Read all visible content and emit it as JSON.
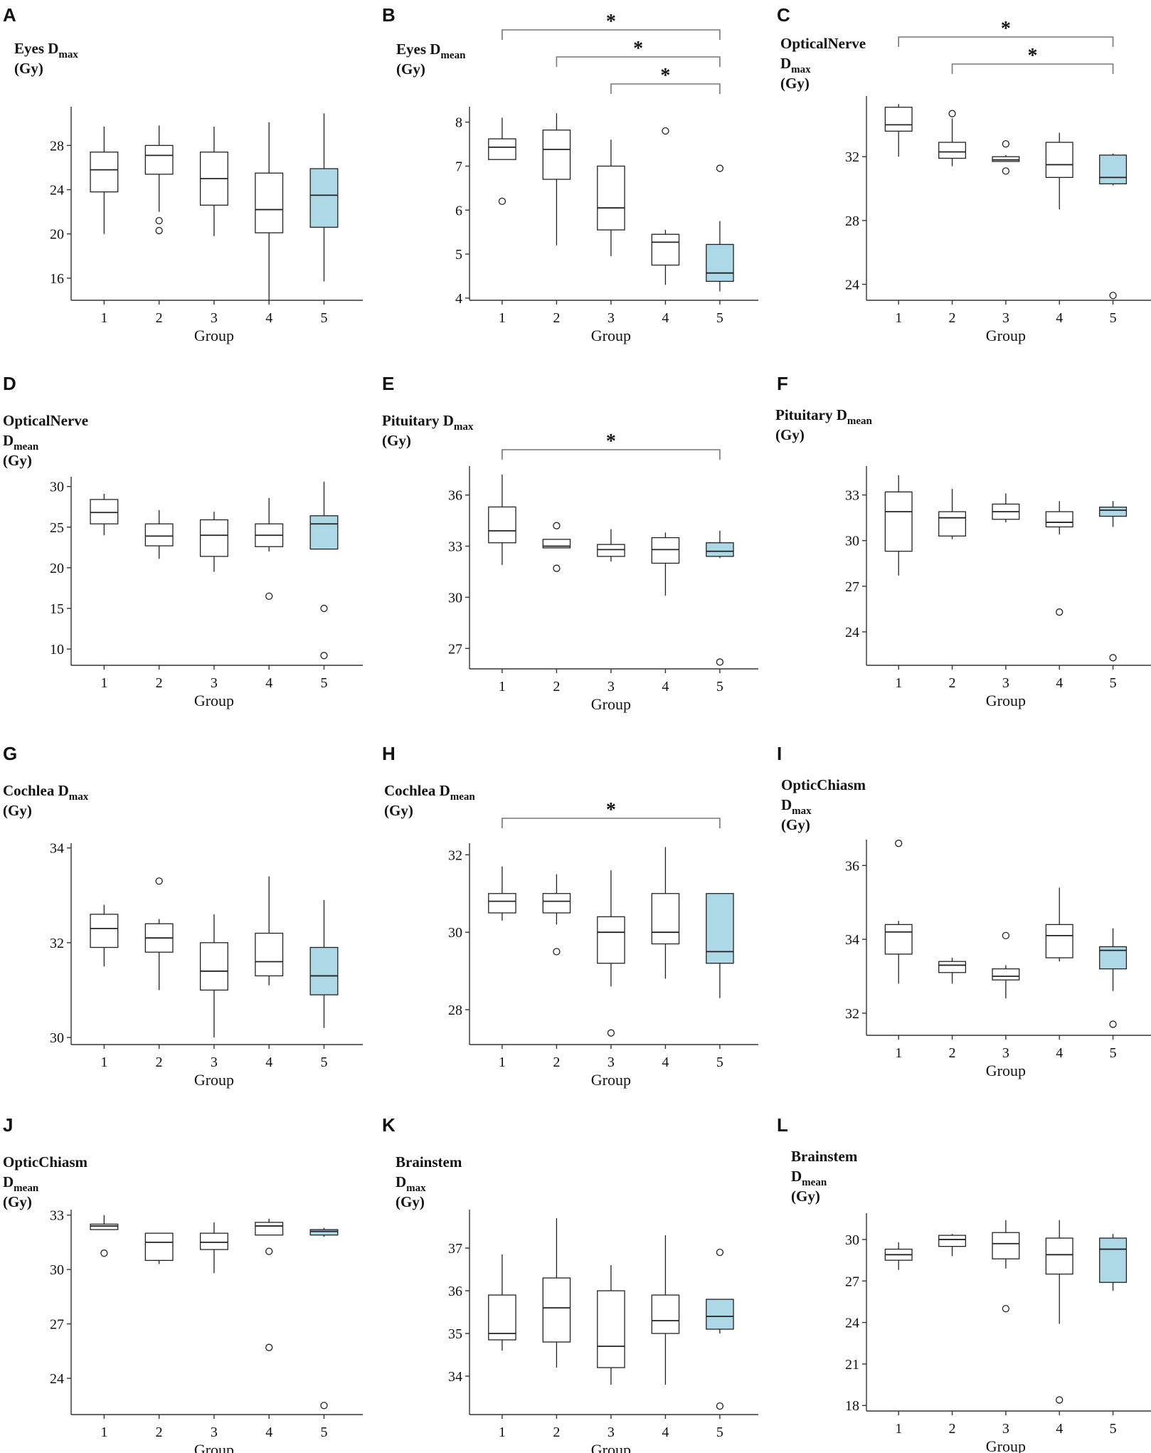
{
  "colors": {
    "highlight": "#add8e6",
    "plain": "#ffffff",
    "line": "#222222"
  },
  "chart_data": [
    {
      "panel": "A",
      "type": "box",
      "title_lines": [
        [
          "Eyes D",
          "max"
        ],
        [
          "(Gy)",
          ""
        ]
      ],
      "xlabel": "Group",
      "categories": [
        "1",
        "2",
        "3",
        "4",
        "5"
      ],
      "ylim": [
        14,
        31.5
      ],
      "yticks": [
        16,
        20,
        24,
        28
      ],
      "highlight_group": 5,
      "boxes": [
        {
          "group": "1",
          "min": 20,
          "q1": 23.8,
          "median": 25.8,
          "q3": 27.4,
          "max": 29.7,
          "outliers": []
        },
        {
          "group": "2",
          "min": 22,
          "q1": 25.4,
          "median": 27.1,
          "q3": 28,
          "max": 29.8,
          "outliers": [
            21.2,
            20.3
          ]
        },
        {
          "group": "3",
          "min": 19.8,
          "q1": 22.6,
          "median": 25,
          "q3": 27.4,
          "max": 29.7,
          "outliers": []
        },
        {
          "group": "4",
          "min": 14,
          "q1": 20.1,
          "median": 22.2,
          "q3": 25.5,
          "max": 30.1,
          "outliers": []
        },
        {
          "group": "5",
          "min": 15.7,
          "q1": 20.6,
          "median": 23.5,
          "q3": 25.9,
          "max": 30.9,
          "outliers": []
        }
      ],
      "significance": []
    },
    {
      "panel": "B",
      "type": "box",
      "title_lines": [
        [
          "Eyes D",
          "mean"
        ],
        [
          "(Gy)",
          ""
        ]
      ],
      "xlabel": "Group",
      "categories": [
        "1",
        "2",
        "3",
        "4",
        "5"
      ],
      "ylim": [
        3.95,
        8.35
      ],
      "yticks": [
        4,
        5,
        6,
        7,
        8
      ],
      "highlight_group": 5,
      "boxes": [
        {
          "group": "1",
          "min": 7.15,
          "q1": 7.15,
          "median": 7.43,
          "q3": 7.62,
          "max": 8.1,
          "outliers": [
            6.2
          ]
        },
        {
          "group": "2",
          "min": 5.2,
          "q1": 6.7,
          "median": 7.38,
          "q3": 7.82,
          "max": 8.2,
          "outliers": []
        },
        {
          "group": "3",
          "min": 4.95,
          "q1": 5.55,
          "median": 6.05,
          "q3": 7,
          "max": 7.6,
          "outliers": []
        },
        {
          "group": "4",
          "min": 4.3,
          "q1": 4.75,
          "median": 5.27,
          "q3": 5.45,
          "max": 5.55,
          "outliers": [
            7.8
          ]
        },
        {
          "group": "5",
          "min": 4.15,
          "q1": 4.38,
          "median": 4.57,
          "q3": 5.22,
          "max": 5.75,
          "outliers": [
            6.95
          ]
        }
      ],
      "significance": [
        {
          "from": "1",
          "to": "5",
          "label": "*"
        },
        {
          "from": "2",
          "to": "5",
          "label": "*"
        },
        {
          "from": "3",
          "to": "5",
          "label": "*"
        }
      ]
    },
    {
      "panel": "C",
      "type": "box",
      "title_lines": [
        [
          "OpticalNerve",
          ""
        ],
        [
          "D",
          "max"
        ],
        [
          "(Gy)",
          ""
        ]
      ],
      "xlabel": "Group",
      "categories": [
        "1",
        "2",
        "3",
        "4",
        "5"
      ],
      "ylim": [
        23,
        35.8
      ],
      "yticks": [
        24,
        28,
        32
      ],
      "highlight_group": 5,
      "boxes": [
        {
          "group": "1",
          "min": 32,
          "q1": 33.6,
          "median": 34,
          "q3": 35.1,
          "max": 35.3,
          "outliers": []
        },
        {
          "group": "2",
          "min": 31.4,
          "q1": 31.9,
          "median": 32.3,
          "q3": 32.9,
          "max": 34.4,
          "outliers": [
            34.7
          ]
        },
        {
          "group": "3",
          "min": 31.7,
          "q1": 31.7,
          "median": 31.8,
          "q3": 32,
          "max": 32.1,
          "outliers": [
            32.8,
            31.1
          ]
        },
        {
          "group": "4",
          "min": 28.7,
          "q1": 30.7,
          "median": 31.5,
          "q3": 32.9,
          "max": 33.5,
          "outliers": []
        },
        {
          "group": "5",
          "min": 30.2,
          "q1": 30.3,
          "median": 30.7,
          "q3": 32.1,
          "max": 32.2,
          "outliers": [
            23.3
          ]
        }
      ],
      "significance": [
        {
          "from": "1",
          "to": "5",
          "label": "*"
        },
        {
          "from": "2",
          "to": "5",
          "label": "*"
        }
      ]
    },
    {
      "panel": "D",
      "type": "box",
      "title_lines": [
        [
          "OpticalNerve",
          ""
        ],
        [
          "D",
          "mean"
        ],
        [
          "(Gy)",
          ""
        ]
      ],
      "xlabel": "Group",
      "categories": [
        "1",
        "2",
        "3",
        "4",
        "5"
      ],
      "ylim": [
        8,
        31.2
      ],
      "yticks": [
        10,
        15,
        20,
        25,
        30
      ],
      "highlight_group": 5,
      "boxes": [
        {
          "group": "1",
          "min": 24,
          "q1": 25.4,
          "median": 26.8,
          "q3": 28.4,
          "max": 29.1,
          "outliers": []
        },
        {
          "group": "2",
          "min": 21.1,
          "q1": 22.7,
          "median": 23.9,
          "q3": 25.4,
          "max": 27.1,
          "outliers": []
        },
        {
          "group": "3",
          "min": 19.5,
          "q1": 21.4,
          "median": 24,
          "q3": 25.9,
          "max": 26.9,
          "outliers": []
        },
        {
          "group": "4",
          "min": 22,
          "q1": 22.6,
          "median": 24,
          "q3": 25.4,
          "max": 28.6,
          "outliers": [
            16.5
          ]
        },
        {
          "group": "5",
          "min": 22.3,
          "q1": 22.3,
          "median": 25.4,
          "q3": 26.4,
          "max": 30.6,
          "outliers": [
            15,
            9.2
          ]
        }
      ],
      "significance": []
    },
    {
      "panel": "E",
      "type": "box",
      "title_lines": [
        [
          "Pituitary D",
          "max"
        ],
        [
          "(Gy)",
          ""
        ]
      ],
      "xlabel": "Group",
      "categories": [
        "1",
        "2",
        "3",
        "4",
        "5"
      ],
      "ylim": [
        25.8,
        37.7
      ],
      "yticks": [
        27,
        30,
        33,
        36
      ],
      "highlight_group": 5,
      "boxes": [
        {
          "group": "1",
          "min": 31.9,
          "q1": 33.2,
          "median": 33.9,
          "q3": 35.3,
          "max": 37.2,
          "outliers": []
        },
        {
          "group": "2",
          "min": 32.9,
          "q1": 32.9,
          "median": 33,
          "q3": 33.4,
          "max": 33.4,
          "outliers": [
            34.2,
            31.7
          ]
        },
        {
          "group": "3",
          "min": 32.1,
          "q1": 32.4,
          "median": 32.8,
          "q3": 33.1,
          "max": 34,
          "outliers": []
        },
        {
          "group": "4",
          "min": 30.1,
          "q1": 32,
          "median": 32.8,
          "q3": 33.5,
          "max": 33.8,
          "outliers": []
        },
        {
          "group": "5",
          "min": 32.3,
          "q1": 32.4,
          "median": 32.7,
          "q3": 33.2,
          "max": 33.9,
          "outliers": [
            26.2
          ]
        }
      ],
      "significance": [
        {
          "from": "1",
          "to": "5",
          "label": "*"
        }
      ]
    },
    {
      "panel": "F",
      "type": "box",
      "title_lines": [
        [
          "Pituitary D",
          "mean"
        ],
        [
          "(Gy)",
          ""
        ]
      ],
      "xlabel": "Group",
      "categories": [
        "1",
        "2",
        "3",
        "4",
        "5"
      ],
      "ylim": [
        21.8,
        34.9
      ],
      "yticks": [
        24,
        27,
        30,
        33
      ],
      "highlight_group": 5,
      "boxes": [
        {
          "group": "1",
          "min": 27.7,
          "q1": 29.3,
          "median": 31.9,
          "q3": 33.2,
          "max": 34.3,
          "outliers": []
        },
        {
          "group": "2",
          "min": 30.1,
          "q1": 30.3,
          "median": 31.5,
          "q3": 31.9,
          "max": 33.4,
          "outliers": []
        },
        {
          "group": "3",
          "min": 31.2,
          "q1": 31.4,
          "median": 31.9,
          "q3": 32.4,
          "max": 33.1,
          "outliers": []
        },
        {
          "group": "4",
          "min": 30.4,
          "q1": 30.9,
          "median": 31.2,
          "q3": 31.9,
          "max": 32.6,
          "outliers": [
            25.3
          ]
        },
        {
          "group": "5",
          "min": 30.9,
          "q1": 31.6,
          "median": 32,
          "q3": 32.2,
          "max": 32.6,
          "outliers": [
            22.3
          ]
        }
      ],
      "significance": []
    },
    {
      "panel": "G",
      "type": "box",
      "title_lines": [
        [
          "Cochlea D",
          "max"
        ],
        [
          "(Gy)",
          ""
        ]
      ],
      "xlabel": "Group",
      "categories": [
        "1",
        "2",
        "3",
        "4",
        "5"
      ],
      "ylim": [
        29.85,
        34.1
      ],
      "yticks": [
        30,
        32,
        34
      ],
      "highlight_group": 5,
      "boxes": [
        {
          "group": "1",
          "min": 31.5,
          "q1": 31.9,
          "median": 32.3,
          "q3": 32.6,
          "max": 32.8,
          "outliers": []
        },
        {
          "group": "2",
          "min": 31,
          "q1": 31.8,
          "median": 32.1,
          "q3": 32.4,
          "max": 32.5,
          "outliers": [
            33.3
          ]
        },
        {
          "group": "3",
          "min": 30,
          "q1": 31,
          "median": 31.4,
          "q3": 32,
          "max": 32.6,
          "outliers": []
        },
        {
          "group": "4",
          "min": 31.1,
          "q1": 31.3,
          "median": 31.6,
          "q3": 32.2,
          "max": 33.4,
          "outliers": []
        },
        {
          "group": "5",
          "min": 30.2,
          "q1": 30.9,
          "median": 31.3,
          "q3": 31.9,
          "max": 32.9,
          "outliers": []
        }
      ],
      "significance": []
    },
    {
      "panel": "H",
      "type": "box",
      "title_lines": [
        [
          "Cochlea D",
          "mean"
        ],
        [
          "(Gy)",
          ""
        ]
      ],
      "xlabel": "Group",
      "categories": [
        "1",
        "2",
        "3",
        "4",
        "5"
      ],
      "ylim": [
        27.1,
        32.3
      ],
      "yticks": [
        28,
        30,
        32
      ],
      "highlight_group": 5,
      "boxes": [
        {
          "group": "1",
          "min": 30.3,
          "q1": 30.5,
          "median": 30.8,
          "q3": 31,
          "max": 31.7,
          "outliers": []
        },
        {
          "group": "2",
          "min": 30.2,
          "q1": 30.5,
          "median": 30.8,
          "q3": 31,
          "max": 31.5,
          "outliers": [
            29.5
          ]
        },
        {
          "group": "3",
          "min": 28.6,
          "q1": 29.2,
          "median": 30,
          "q3": 30.4,
          "max": 31.6,
          "outliers": [
            27.4
          ]
        },
        {
          "group": "4",
          "min": 28.8,
          "q1": 29.7,
          "median": 30,
          "q3": 31,
          "max": 32.2,
          "outliers": []
        },
        {
          "group": "5",
          "min": 28.3,
          "q1": 29.2,
          "median": 29.5,
          "q3": 31,
          "max": 31,
          "outliers": []
        }
      ],
      "significance": [
        {
          "from": "1",
          "to": "5",
          "label": "*"
        }
      ]
    },
    {
      "panel": "I",
      "type": "box",
      "title_lines": [
        [
          "OpticChiasm",
          ""
        ],
        [
          "D",
          "max"
        ],
        [
          "(Gy)",
          ""
        ]
      ],
      "xlabel": "Group",
      "categories": [
        "1",
        "2",
        "3",
        "4",
        "5"
      ],
      "ylim": [
        31.4,
        36.7
      ],
      "yticks": [
        32,
        34,
        36
      ],
      "highlight_group": 5,
      "boxes": [
        {
          "group": "1",
          "min": 32.8,
          "q1": 33.6,
          "median": 34.2,
          "q3": 34.4,
          "max": 34.5,
          "outliers": [
            36.6
          ]
        },
        {
          "group": "2",
          "min": 32.8,
          "q1": 33.1,
          "median": 33.3,
          "q3": 33.4,
          "max": 33.5,
          "outliers": []
        },
        {
          "group": "3",
          "min": 32.4,
          "q1": 32.9,
          "median": 33,
          "q3": 33.2,
          "max": 33.3,
          "outliers": [
            34.1
          ]
        },
        {
          "group": "4",
          "min": 33.4,
          "q1": 33.5,
          "median": 34.1,
          "q3": 34.4,
          "max": 35.4,
          "outliers": []
        },
        {
          "group": "5",
          "min": 32.6,
          "q1": 33.2,
          "median": 33.7,
          "q3": 33.8,
          "max": 34.3,
          "outliers": [
            31.7
          ]
        }
      ],
      "significance": []
    },
    {
      "panel": "J",
      "type": "box",
      "title_lines": [
        [
          "OpticChiasm",
          ""
        ],
        [
          "D",
          "mean"
        ],
        [
          "(Gy)",
          ""
        ]
      ],
      "xlabel": "Group",
      "categories": [
        "1",
        "2",
        "3",
        "4",
        "5"
      ],
      "ylim": [
        22,
        33.3
      ],
      "yticks": [
        24,
        27,
        30,
        33
      ],
      "highlight_group": 5,
      "boxes": [
        {
          "group": "1",
          "min": 32.2,
          "q1": 32.2,
          "median": 32.4,
          "q3": 32.5,
          "max": 33,
          "outliers": [
            30.9
          ]
        },
        {
          "group": "2",
          "min": 30.3,
          "q1": 30.5,
          "median": 31.5,
          "q3": 32,
          "max": 32,
          "outliers": []
        },
        {
          "group": "3",
          "min": 29.8,
          "q1": 31.1,
          "median": 31.5,
          "q3": 32,
          "max": 32.6,
          "outliers": []
        },
        {
          "group": "4",
          "min": 31.9,
          "q1": 31.9,
          "median": 32.4,
          "q3": 32.6,
          "max": 32.8,
          "outliers": [
            31,
            25.7
          ]
        },
        {
          "group": "5",
          "min": 31.8,
          "q1": 31.9,
          "median": 32.1,
          "q3": 32.2,
          "max": 32.3,
          "outliers": [
            22.5
          ]
        }
      ],
      "significance": []
    },
    {
      "panel": "K",
      "type": "box",
      "title_lines": [
        [
          "Brainstem",
          ""
        ],
        [
          "D",
          "max"
        ],
        [
          "(Gy)",
          ""
        ]
      ],
      "xlabel": "Group",
      "categories": [
        "1",
        "2",
        "3",
        "4",
        "5"
      ],
      "ylim": [
        33.1,
        37.9
      ],
      "yticks": [
        34,
        35,
        36,
        37
      ],
      "highlight_group": 5,
      "boxes": [
        {
          "group": "1",
          "min": 34.6,
          "q1": 34.85,
          "median": 35,
          "q3": 35.9,
          "max": 36.85,
          "outliers": []
        },
        {
          "group": "2",
          "min": 34.2,
          "q1": 34.8,
          "median": 35.6,
          "q3": 36.3,
          "max": 37.7,
          "outliers": []
        },
        {
          "group": "3",
          "min": 33.8,
          "q1": 34.2,
          "median": 34.7,
          "q3": 36,
          "max": 36.6,
          "outliers": []
        },
        {
          "group": "4",
          "min": 33.8,
          "q1": 35,
          "median": 35.3,
          "q3": 35.9,
          "max": 37.3,
          "outliers": []
        },
        {
          "group": "5",
          "min": 35,
          "q1": 35.1,
          "median": 35.4,
          "q3": 35.8,
          "max": 35.8,
          "outliers": [
            36.9,
            33.3
          ]
        }
      ],
      "significance": []
    },
    {
      "panel": "L",
      "type": "box",
      "title_lines": [
        [
          "Brainstem",
          ""
        ],
        [
          "D",
          "mean"
        ],
        [
          "(Gy)",
          ""
        ]
      ],
      "xlabel": "Group",
      "categories": [
        "1",
        "2",
        "3",
        "4",
        "5"
      ],
      "ylim": [
        17.6,
        31.9
      ],
      "yticks": [
        18,
        21,
        24,
        27,
        30
      ],
      "highlight_group": 5,
      "boxes": [
        {
          "group": "1",
          "min": 27.8,
          "q1": 28.5,
          "median": 28.9,
          "q3": 29.3,
          "max": 29.8,
          "outliers": []
        },
        {
          "group": "2",
          "min": 28.8,
          "q1": 29.5,
          "median": 30,
          "q3": 30.3,
          "max": 30.4,
          "outliers": []
        },
        {
          "group": "3",
          "min": 27.9,
          "q1": 28.6,
          "median": 29.7,
          "q3": 30.5,
          "max": 31.4,
          "outliers": [
            25
          ]
        },
        {
          "group": "4",
          "min": 23.9,
          "q1": 27.5,
          "median": 28.9,
          "q3": 30.1,
          "max": 31.4,
          "outliers": [
            18.4
          ]
        },
        {
          "group": "5",
          "min": 26.3,
          "q1": 26.9,
          "median": 29.3,
          "q3": 30.1,
          "max": 30.4,
          "outliers": []
        }
      ],
      "significance": []
    }
  ]
}
